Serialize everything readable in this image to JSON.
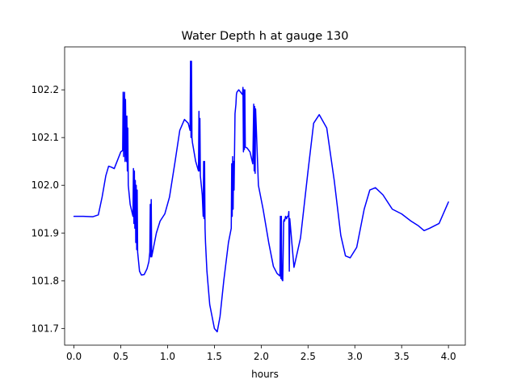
{
  "chart_data": {
    "type": "line",
    "title": "Water Depth h at gauge 130",
    "xlabel": "hours",
    "ylabel": "",
    "xlim": [
      -0.1,
      4.18
    ],
    "ylim": [
      101.665,
      102.29
    ],
    "xticks": [
      0.0,
      0.5,
      1.0,
      1.5,
      2.0,
      2.5,
      3.0,
      3.5,
      4.0
    ],
    "xtick_labels": [
      "0.0",
      "0.5",
      "1.0",
      "1.5",
      "2.0",
      "2.5",
      "3.0",
      "3.5",
      "4.0"
    ],
    "yticks": [
      101.7,
      101.8,
      101.9,
      102.0,
      102.1,
      102.2
    ],
    "ytick_labels": [
      "101.7",
      "101.8",
      "101.9",
      "102.0",
      "102.1",
      "102.2"
    ],
    "grid": false,
    "legend": "none",
    "series": [
      {
        "color": "#0000ff",
        "x": [
          0.0,
          0.1,
          0.2,
          0.26,
          0.3,
          0.34,
          0.37,
          0.4,
          0.43,
          0.46,
          0.5,
          0.52,
          0.525,
          0.53,
          0.54,
          0.545,
          0.55,
          0.555,
          0.56,
          0.565,
          0.57,
          0.575,
          0.58,
          0.6,
          0.63,
          0.635,
          0.64,
          0.645,
          0.65,
          0.655,
          0.66,
          0.665,
          0.67,
          0.675,
          0.68,
          0.69,
          0.7,
          0.72,
          0.75,
          0.78,
          0.8,
          0.81,
          0.815,
          0.82,
          0.825,
          0.83,
          0.85,
          0.88,
          0.92,
          0.97,
          1.02,
          1.08,
          1.13,
          1.18,
          1.22,
          1.24,
          1.245,
          1.25,
          1.255,
          1.26,
          1.265,
          1.3,
          1.33,
          1.335,
          1.34,
          1.345,
          1.35,
          1.37,
          1.38,
          1.385,
          1.39,
          1.395,
          1.4,
          1.405,
          1.42,
          1.45,
          1.5,
          1.53,
          1.56,
          1.6,
          1.65,
          1.68,
          1.685,
          1.69,
          1.695,
          1.7,
          1.705,
          1.71,
          1.72,
          1.73,
          1.735,
          1.74,
          1.76,
          1.78,
          1.8,
          1.805,
          1.81,
          1.815,
          1.82,
          1.825,
          1.83,
          1.85,
          1.88,
          1.91,
          1.92,
          1.925,
          1.93,
          1.935,
          1.94,
          1.97,
          2.02,
          2.08,
          2.13,
          2.17,
          2.2,
          2.205,
          2.21,
          2.215,
          2.22,
          2.23,
          2.24,
          2.245,
          2.25,
          2.255,
          2.26,
          2.27,
          2.28,
          2.29,
          2.295,
          2.3,
          2.305,
          2.35,
          2.42,
          2.5,
          2.56,
          2.62,
          2.7,
          2.78,
          2.85,
          2.9,
          2.95,
          3.02,
          3.1,
          3.16,
          3.22,
          3.3,
          3.4,
          3.5,
          3.6,
          3.68,
          3.74,
          3.8,
          3.9,
          4.0
        ],
        "y": [
          101.935,
          101.935,
          101.934,
          101.938,
          101.975,
          102.02,
          102.04,
          102.038,
          102.035,
          102.05,
          102.07,
          102.073,
          102.195,
          102.06,
          102.195,
          102.05,
          102.18,
          102.1,
          102.05,
          102.145,
          102.03,
          102.12,
          102.0,
          101.96,
          101.935,
          102.035,
          101.92,
          102.03,
          101.91,
          102.01,
          101.88,
          102.0,
          101.865,
          101.99,
          101.86,
          101.84,
          101.82,
          101.812,
          101.813,
          101.825,
          101.84,
          101.86,
          101.96,
          101.85,
          101.97,
          101.85,
          101.87,
          101.9,
          101.925,
          101.94,
          101.975,
          102.05,
          102.115,
          102.138,
          102.13,
          102.115,
          102.26,
          102.1,
          102.26,
          102.1,
          102.09,
          102.05,
          102.03,
          102.155,
          102.03,
          102.14,
          102.02,
          101.98,
          101.935,
          102.05,
          101.93,
          102.05,
          101.91,
          101.88,
          101.82,
          101.75,
          101.7,
          101.693,
          101.725,
          101.8,
          101.88,
          101.91,
          102.045,
          101.935,
          102.06,
          101.95,
          102.05,
          101.99,
          102.15,
          102.17,
          102.19,
          102.195,
          102.2,
          102.195,
          102.19,
          102.205,
          102.07,
          102.2,
          102.075,
          102.2,
          102.08,
          102.078,
          102.07,
          102.045,
          102.17,
          102.03,
          102.165,
          102.025,
          102.16,
          102.0,
          101.95,
          101.88,
          101.83,
          101.815,
          101.81,
          101.935,
          101.805,
          101.935,
          101.803,
          101.8,
          101.925,
          101.928,
          101.925,
          101.93,
          101.935,
          101.93,
          101.935,
          101.935,
          101.945,
          101.82,
          101.93,
          101.828,
          101.89,
          102.03,
          102.13,
          102.148,
          102.12,
          102.01,
          101.895,
          101.852,
          101.848,
          101.87,
          101.95,
          101.99,
          101.995,
          101.98,
          101.95,
          101.94,
          101.925,
          101.915,
          101.905,
          101.91,
          101.92,
          101.965
        ]
      }
    ]
  }
}
